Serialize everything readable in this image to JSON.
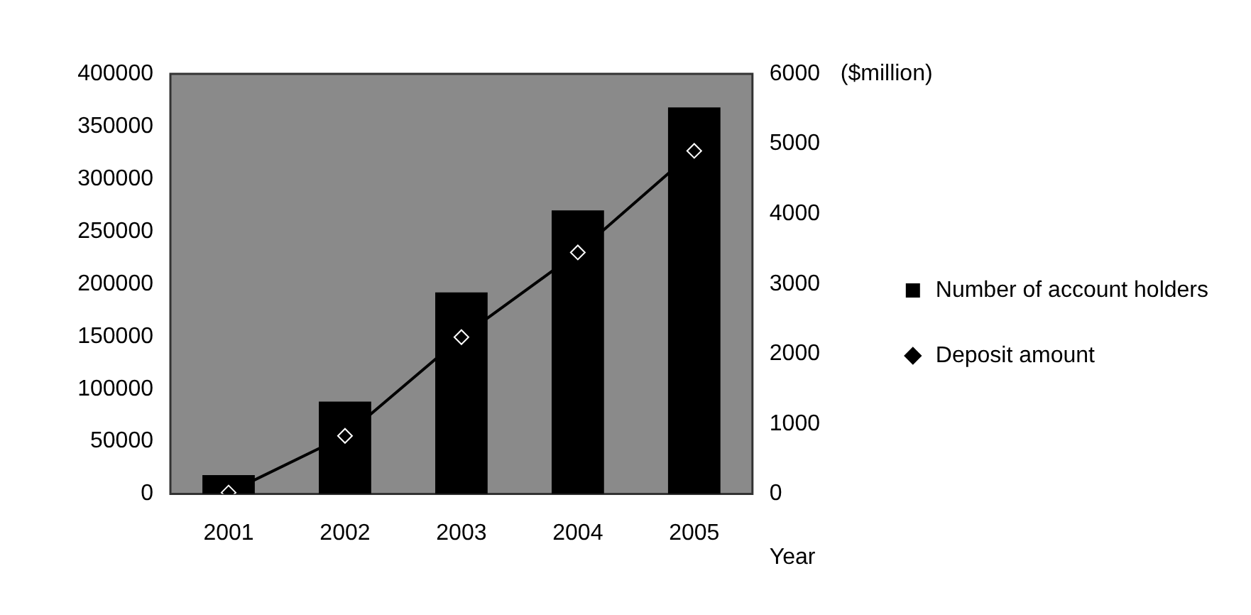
{
  "chart_data": {
    "type": "bar",
    "categories": [
      "2001",
      "2002",
      "2003",
      "2004",
      "2005"
    ],
    "series": [
      {
        "name": "Number of account holders",
        "color": "#000000",
        "values": [
          18000,
          88000,
          192000,
          270000,
          368000
        ]
      },
      {
        "name": "Deposit amount",
        "type": "line",
        "axis": "y2",
        "color": "#000000",
        "values": [
          20,
          830,
          2240,
          3450,
          4900
        ]
      }
    ],
    "xlabel": "Year",
    "y2label": "($million)",
    "ylim": [
      0,
      400000
    ],
    "yticks": [
      0,
      50000,
      100000,
      150000,
      200000,
      250000,
      300000,
      350000,
      400000
    ],
    "y2lim": [
      0,
      6000
    ],
    "y2ticks": [
      0,
      1000,
      2000,
      3000,
      4000,
      5000,
      6000
    ],
    "grid": false,
    "legend": "right",
    "marker": "diamond",
    "line_style": "solid"
  }
}
